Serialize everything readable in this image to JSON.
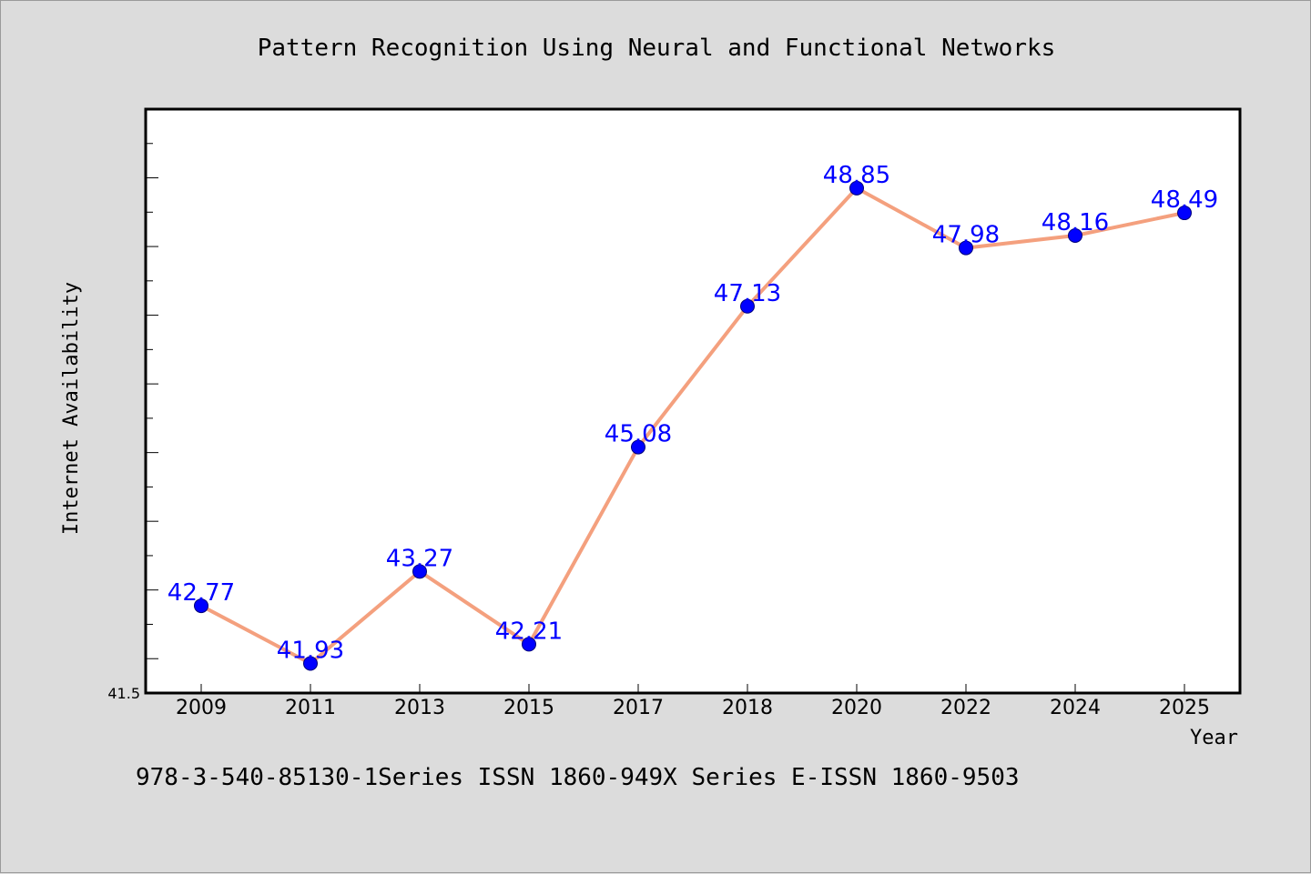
{
  "caption": "978-3-540-85130-1Series ISSN 1860-949X Series E-ISSN 1860-9503",
  "chart_data": {
    "type": "line",
    "title": "Pattern Recognition Using Neural and Functional Networks",
    "xlabel": "Year",
    "ylabel": "Internet Availability",
    "categories": [
      "2009",
      "2011",
      "2013",
      "2015",
      "2017",
      "2018",
      "2020",
      "2022",
      "2024",
      "2025"
    ],
    "values": [
      42.77,
      41.93,
      43.27,
      42.21,
      45.08,
      47.13,
      48.85,
      47.98,
      48.16,
      48.49
    ],
    "data_labels": [
      "42.77",
      "41.93",
      "43.27",
      "42.21",
      "45.08",
      "47.13",
      "48.85",
      "47.98",
      "48.16",
      "48.49"
    ],
    "ylim": [
      41.5,
      50.0
    ],
    "ytick_labels": [
      "41.5"
    ],
    "grid": false,
    "line_color": "#f4a07e",
    "marker_color": "#0000ff",
    "label_color": "#0000ff"
  }
}
